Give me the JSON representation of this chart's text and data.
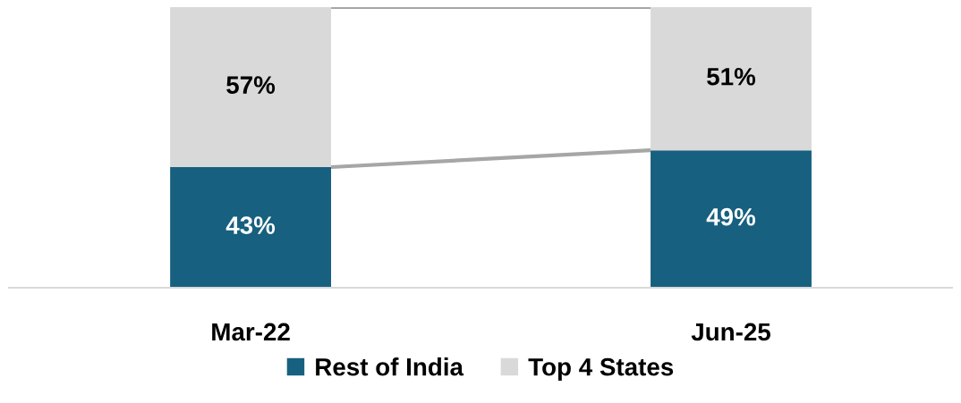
{
  "chart_data": {
    "type": "bar",
    "stacked": true,
    "categories": [
      "Mar-22",
      "Jun-25"
    ],
    "series": [
      {
        "name": "Rest of India",
        "color": "#17607f",
        "values": [
          43,
          49
        ],
        "value_labels": [
          "43%",
          "49%"
        ]
      },
      {
        "name": "Top 4 States",
        "color": "#d9d9d9",
        "values": [
          57,
          51
        ],
        "value_labels": [
          "57%",
          "51%"
        ]
      }
    ],
    "legend": "bottom",
    "tick_labels": "x",
    "grid": false
  }
}
